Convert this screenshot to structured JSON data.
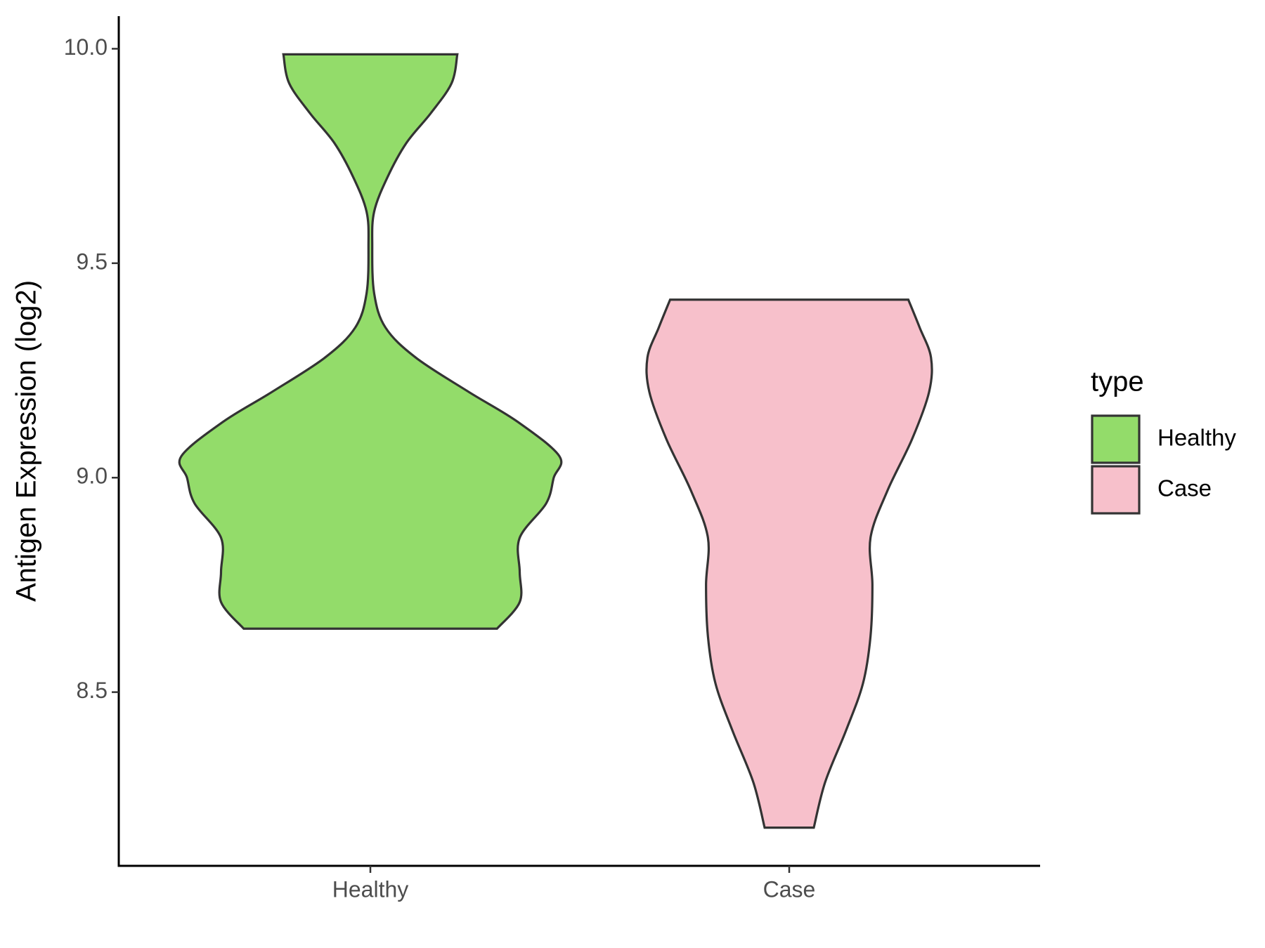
{
  "chart_data": {
    "type": "violin",
    "y_label": "Antigen Expression (log2)",
    "categories": [
      "Healthy",
      "Case"
    ],
    "series": [
      {
        "name": "Healthy",
        "color": "#93dc6a",
        "y": [
          8.648,
          8.71,
          8.78,
          8.86,
          8.94,
          9.0,
          9.05,
          9.13,
          9.2,
          9.28,
          9.35,
          9.43,
          9.54,
          9.62,
          9.7,
          9.78,
          9.85,
          9.92,
          9.987
        ],
        "density": [
          0.67,
          0.79,
          0.79,
          0.79,
          0.93,
          0.97,
          1.0,
          0.78,
          0.52,
          0.24,
          0.08,
          0.02,
          0.01,
          0.02,
          0.09,
          0.19,
          0.32,
          0.43,
          0.46
        ]
      },
      {
        "name": "Case",
        "color": "#f7c0cb",
        "y": [
          8.184,
          8.29,
          8.41,
          8.52,
          8.63,
          8.75,
          8.86,
          8.97,
          9.09,
          9.2,
          9.28,
          9.35,
          9.415
        ],
        "density": [
          0.13,
          0.19,
          0.3,
          0.39,
          0.43,
          0.44,
          0.43,
          0.52,
          0.65,
          0.74,
          0.75,
          0.69,
          0.63
        ]
      }
    ],
    "ylim": [
      8.095,
      10.076
    ],
    "yticks": [
      {
        "value": 8.5,
        "label": "8.5"
      },
      {
        "value": 9,
        "label": "9.0"
      },
      {
        "value": 9.5,
        "label": "9.5"
      },
      {
        "value": 10,
        "label": "10.0"
      }
    ],
    "legend_title": "type",
    "legend_position": "right",
    "grid": false
  }
}
